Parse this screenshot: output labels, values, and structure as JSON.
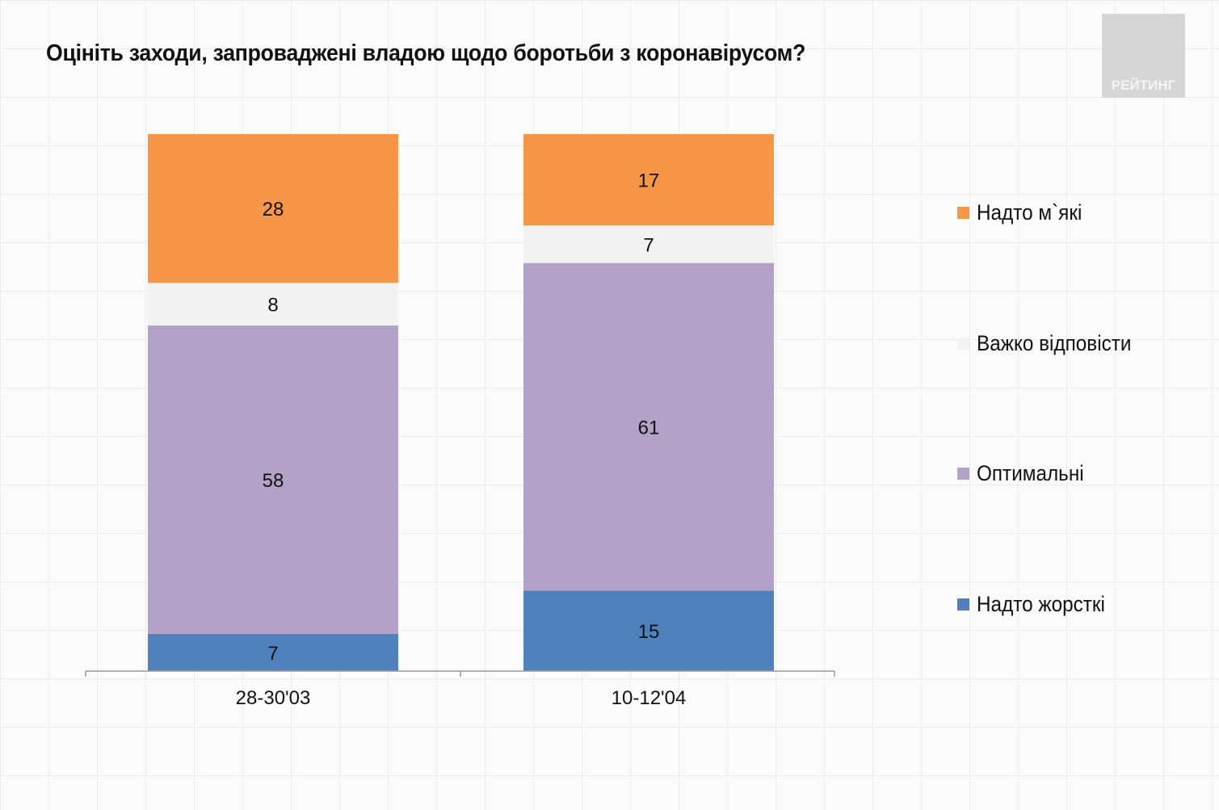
{
  "logo_text": "РЕЙТИНГ",
  "chart_data": {
    "type": "bar",
    "stacked": true,
    "title": "Оцініть заходи, запроваджені владою щодо боротьби з коронавірусом?",
    "categories": [
      "28-30'03",
      "10-12'04"
    ],
    "series": [
      {
        "name": "Надто жорсткі",
        "color": "#4f81bd",
        "values": [
          7,
          15
        ]
      },
      {
        "name": "Оптимальні",
        "color": "#b3a2c7",
        "values": [
          58,
          61
        ]
      },
      {
        "name": "Важко відповісти",
        "color": "#f2f2f2",
        "values": [
          8,
          7
        ]
      },
      {
        "name": "Надто м`які",
        "color": "#f79646",
        "values": [
          28,
          17
        ]
      }
    ],
    "legend_order": [
      3,
      2,
      1,
      0
    ],
    "legend": "right",
    "data_labels": true,
    "grid": false
  }
}
